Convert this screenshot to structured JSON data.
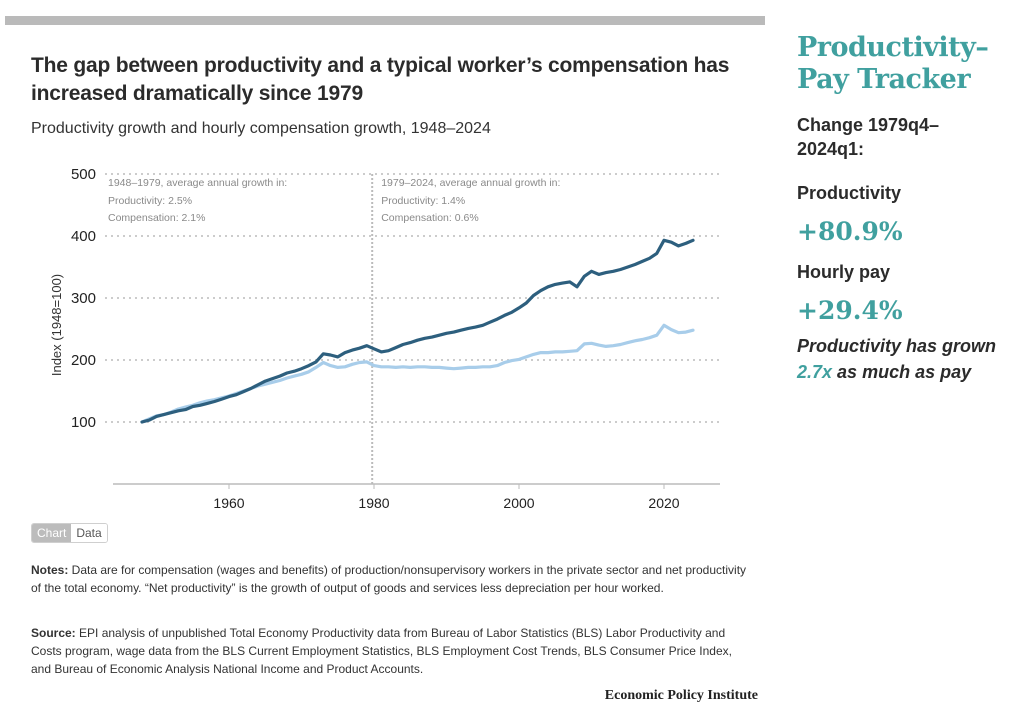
{
  "header": {
    "title": "The gap between productivity and a typical worker’s compensation has increased dramatically since 1979",
    "subtitle": "Productivity growth and hourly compensation growth, 1948–2024"
  },
  "toggle": {
    "chart_label": "Chart",
    "data_label": "Data",
    "active": "Chart"
  },
  "notes": {
    "label": "Notes:",
    "text": " Data are for compensation (wages and benefits) of production/nonsupervisory workers in the private sector and net productivity of the total economy. “Net productivity” is the growth of output of goods and services less de­preciation per hour worked."
  },
  "source": {
    "label": "Source:",
    "text": " EPI analysis of unpublished Total Economy Productivity data from Bureau of Labor Statistics (BLS) Labor Productivity and Costs program, wage data from the BLS Current Employment Statistics, BLS Employment Cost Trends, BLS Consumer Price Index, and Bureau of Economic Analysis National Income and Product Accounts."
  },
  "brand": "Economic Policy Institute",
  "sidebar": {
    "title_line1": "Productivity–",
    "title_line2": "Pay Tracker",
    "change_label": "Change 1979q4–2024q1:",
    "productivity_label": "Productivity",
    "productivity_value": "+80.9%",
    "pay_label": "Hourly pay",
    "pay_value": "+29.4%",
    "summary_pre": "Productivity has grown ",
    "summary_highlight": "2.7x",
    "summary_post": " as much as pay"
  },
  "colors": {
    "productivity": "#2d5f7e",
    "compensation": "#a8cdea",
    "accent": "#40a09f",
    "grid": "#cccccc"
  },
  "chart_data": {
    "type": "line",
    "title": "The gap between productivity and a typical worker’s compensation has increased dramatically since 1979",
    "subtitle": "Productivity growth and hourly compensation growth, 1948–2024",
    "xlabel": "",
    "ylabel": "Index (1948=100)",
    "xlim": [
      1945,
      2027
    ],
    "ylim": [
      0,
      500
    ],
    "xticks": [
      1960,
      1980,
      2000,
      2020
    ],
    "yticks": [
      100,
      200,
      300,
      400,
      500
    ],
    "grid": true,
    "divider_year": 1979.75,
    "annotations": [
      {
        "period": "1948–1979, average annual growth in:",
        "productivity": "Productivity: 2.5%",
        "compensation": "Compensation: 2.1%"
      },
      {
        "period": "1979–2024, average annual growth in:",
        "productivity": "Productivity: 1.4%",
        "compensation": "Compensation: 0.6%"
      }
    ],
    "series": [
      {
        "name": "Productivity",
        "x": [
          1948,
          1949,
          1950,
          1951,
          1952,
          1953,
          1954,
          1955,
          1956,
          1957,
          1958,
          1959,
          1960,
          1961,
          1962,
          1963,
          1964,
          1965,
          1966,
          1967,
          1968,
          1969,
          1970,
          1971,
          1972,
          1973,
          1974,
          1975,
          1976,
          1977,
          1978,
          1979,
          1980,
          1981,
          1982,
          1983,
          1984,
          1985,
          1986,
          1987,
          1988,
          1989,
          1990,
          1991,
          1992,
          1993,
          1994,
          1995,
          1996,
          1997,
          1998,
          1999,
          2000,
          2001,
          2002,
          2003,
          2004,
          2005,
          2006,
          2007,
          2008,
          2009,
          2010,
          2011,
          2012,
          2013,
          2014,
          2015,
          2016,
          2017,
          2018,
          2019,
          2020,
          2021,
          2022,
          2023,
          2024
        ],
        "values": [
          100,
          103,
          109,
          112,
          115,
          118,
          120,
          125,
          127,
          130,
          133,
          137,
          141,
          144,
          149,
          154,
          160,
          166,
          170,
          174,
          179,
          182,
          186,
          191,
          197,
          210,
          208,
          205,
          212,
          216,
          219,
          223,
          218,
          213,
          215,
          220,
          225,
          228,
          232,
          235,
          237,
          240,
          243,
          245,
          248,
          251,
          253,
          256,
          261,
          266,
          272,
          277,
          284,
          292,
          304,
          312,
          318,
          322,
          324,
          326,
          318,
          335,
          343,
          338,
          341,
          343,
          346,
          350,
          354,
          359,
          364,
          372,
          393,
          390,
          384,
          388,
          393
        ]
      },
      {
        "name": "Hourly compensation",
        "x": [
          1948,
          1949,
          1950,
          1951,
          1952,
          1953,
          1954,
          1955,
          1956,
          1957,
          1958,
          1959,
          1960,
          1961,
          1962,
          1963,
          1964,
          1965,
          1966,
          1967,
          1968,
          1969,
          1970,
          1971,
          1972,
          1973,
          1974,
          1975,
          1976,
          1977,
          1978,
          1979,
          1980,
          1981,
          1982,
          1983,
          1984,
          1985,
          1986,
          1987,
          1988,
          1989,
          1990,
          1991,
          1992,
          1993,
          1994,
          1995,
          1996,
          1997,
          1998,
          1999,
          2000,
          2001,
          2002,
          2003,
          2004,
          2005,
          2006,
          2007,
          2008,
          2009,
          2010,
          2011,
          2012,
          2013,
          2014,
          2015,
          2016,
          2017,
          2018,
          2019,
          2020,
          2021,
          2022,
          2023,
          2024
        ],
        "values": [
          100,
          105,
          110,
          112,
          116,
          121,
          124,
          127,
          131,
          134,
          136,
          139,
          142,
          146,
          150,
          154,
          158,
          161,
          164,
          167,
          171,
          174,
          177,
          181,
          188,
          196,
          191,
          188,
          189,
          193,
          196,
          197,
          191,
          189,
          189,
          188,
          189,
          188,
          189,
          189,
          188,
          188,
          187,
          186,
          187,
          188,
          188,
          189,
          189,
          191,
          196,
          199,
          201,
          205,
          209,
          212,
          212,
          213,
          213,
          214,
          215,
          226,
          227,
          224,
          222,
          223,
          225,
          228,
          231,
          233,
          236,
          240,
          256,
          249,
          244,
          245,
          248
        ]
      }
    ]
  }
}
